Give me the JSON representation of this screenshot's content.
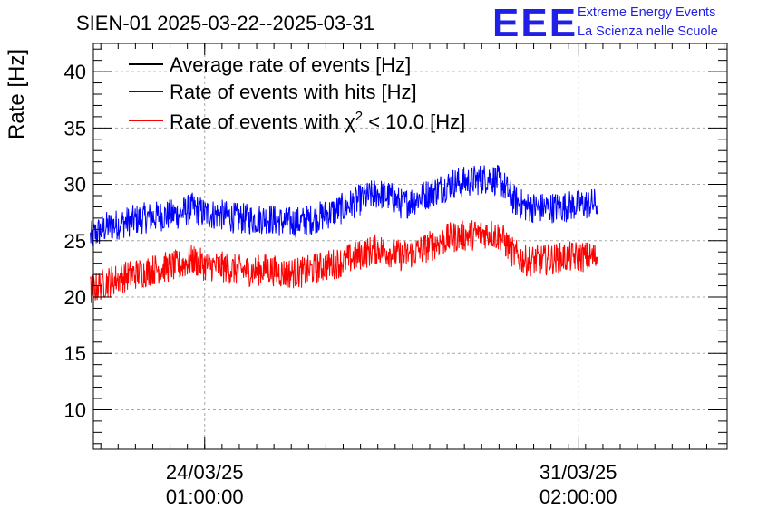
{
  "chart_data": {
    "type": "line",
    "title": "SIEN-01 2025-03-22--2025-03-31",
    "ylabel": "Rate [Hz]",
    "xlabel": "",
    "ylim": [
      6.5,
      42.5
    ],
    "xlim_days": [
      -1.8,
      8.45
    ],
    "grid": true,
    "legend_position": "top-left",
    "y_ticks": [
      "10",
      "15",
      "20",
      "25",
      "30",
      "35",
      "40"
    ],
    "x_ticks": [
      {
        "day": 0,
        "date": "24/03/25",
        "time": "01:00:00"
      },
      {
        "day": 6.04,
        "date": "31/03/25",
        "time": "02:00:00"
      }
    ],
    "x_day_origin": "24/03/25 01:00:00",
    "series": [
      {
        "name": "Average rate of events [Hz]",
        "color": "#000000",
        "days": [],
        "values": []
      },
      {
        "name": "Rate of events with hits [Hz]",
        "color": "#0000ff",
        "noise_amplitude": 1.4,
        "days": [
          -1.85,
          -1.6,
          -1.3,
          -1.0,
          -0.7,
          -0.4,
          -0.2,
          0.0,
          0.25,
          0.5,
          0.8,
          1.0,
          1.3,
          1.6,
          1.9,
          2.2,
          2.5,
          2.8,
          3.0,
          3.2,
          3.5,
          3.8,
          4.0,
          4.3,
          4.6,
          4.8,
          5.0,
          5.2,
          5.5,
          5.8,
          6.05,
          6.35
        ],
        "values": [
          25.3,
          26.2,
          26.6,
          27.0,
          27.2,
          27.4,
          27.9,
          27.4,
          27.3,
          27.0,
          26.9,
          27.0,
          26.6,
          26.7,
          27.2,
          27.8,
          28.6,
          29.2,
          28.9,
          28.2,
          28.9,
          29.6,
          30.1,
          30.3,
          30.6,
          30.2,
          28.6,
          28.0,
          27.9,
          28.0,
          28.2,
          28.3
        ]
      },
      {
        "name": "Rate of events with χ2 < 10.0 [Hz]",
        "legend_main": "Rate of events with χ",
        "legend_sup": "2",
        "legend_rest": " < 10.0 [Hz]",
        "color": "#ff0000",
        "noise_amplitude": 1.4,
        "days": [
          -1.85,
          -1.6,
          -1.3,
          -1.0,
          -0.7,
          -0.4,
          -0.2,
          0.0,
          0.25,
          0.5,
          0.8,
          1.0,
          1.3,
          1.6,
          1.9,
          2.2,
          2.5,
          2.8,
          3.0,
          3.2,
          3.5,
          3.8,
          4.0,
          4.3,
          4.6,
          4.8,
          5.0,
          5.2,
          5.5,
          5.8,
          6.05,
          6.35
        ],
        "values": [
          20.6,
          21.3,
          21.8,
          22.2,
          22.6,
          22.8,
          23.3,
          22.8,
          22.7,
          22.4,
          22.3,
          22.5,
          22.1,
          22.2,
          22.7,
          23.1,
          23.7,
          24.3,
          24.0,
          23.6,
          24.2,
          24.9,
          25.3,
          25.5,
          25.7,
          25.3,
          23.8,
          23.2,
          23.3,
          23.5,
          23.6,
          23.5
        ]
      }
    ]
  },
  "branding": {
    "logo": "EEE",
    "line1": "Extreme Energy Events",
    "line2": "La Scienza nelle Scuole"
  }
}
